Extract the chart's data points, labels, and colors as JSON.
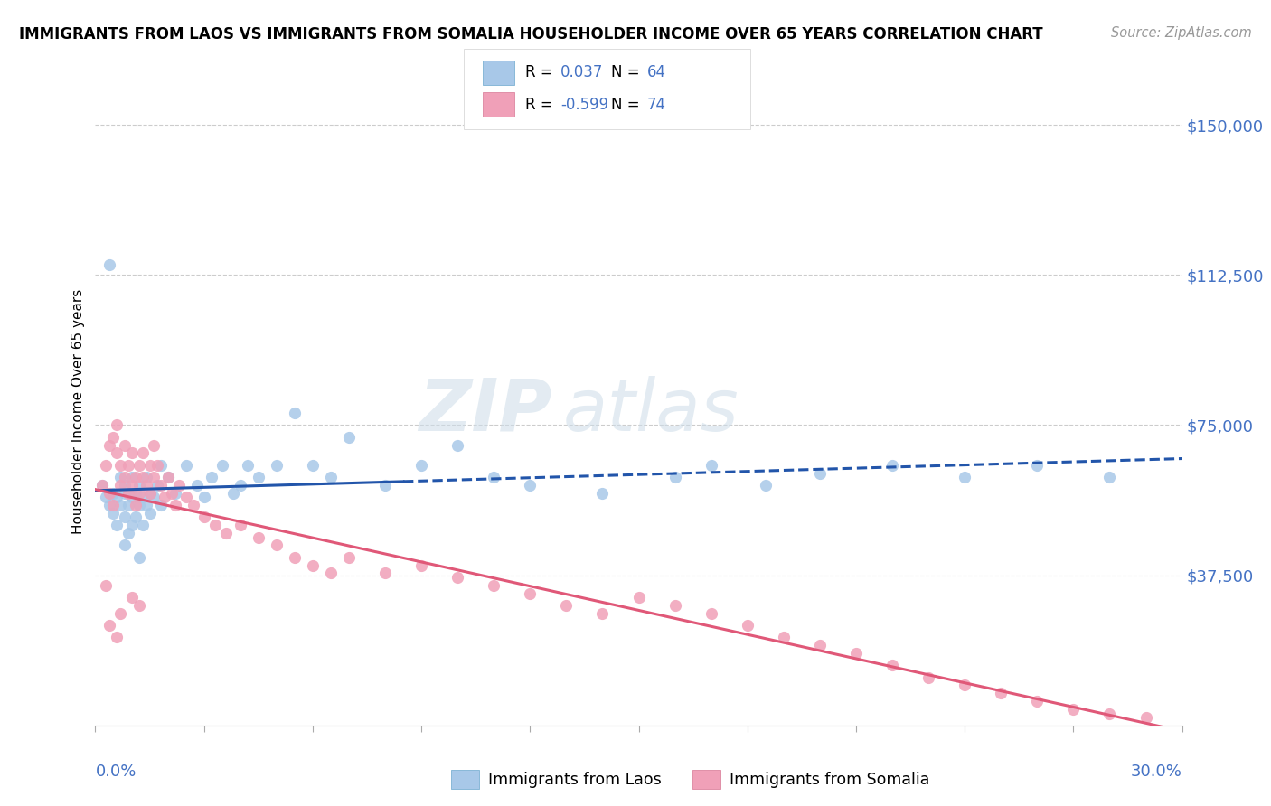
{
  "title": "IMMIGRANTS FROM LAOS VS IMMIGRANTS FROM SOMALIA HOUSEHOLDER INCOME OVER 65 YEARS CORRELATION CHART",
  "source": "Source: ZipAtlas.com",
  "ylabel": "Householder Income Over 65 years",
  "ytick_labels": [
    "$150,000",
    "$112,500",
    "$75,000",
    "$37,500"
  ],
  "ytick_values": [
    150000,
    112500,
    75000,
    37500
  ],
  "xlim": [
    0.0,
    0.3
  ],
  "ylim": [
    0,
    157000
  ],
  "laos_color": "#a8c8e8",
  "somalia_color": "#f0a0b8",
  "laos_line_color": "#2255aa",
  "somalia_line_color": "#e05878",
  "laos_R": 0.037,
  "laos_N": 64,
  "somalia_R": -0.599,
  "somalia_N": 74,
  "watermark_zip": "ZIP",
  "watermark_atlas": "atlas",
  "legend_label_laos": "Immigrants from Laos",
  "legend_label_somalia": "Immigrants from Somalia",
  "laos_x": [
    0.002,
    0.003,
    0.004,
    0.005,
    0.005,
    0.006,
    0.006,
    0.007,
    0.007,
    0.008,
    0.008,
    0.008,
    0.009,
    0.009,
    0.01,
    0.01,
    0.01,
    0.011,
    0.011,
    0.012,
    0.012,
    0.013,
    0.013,
    0.014,
    0.014,
    0.015,
    0.015,
    0.016,
    0.017,
    0.018,
    0.02,
    0.022,
    0.025,
    0.028,
    0.03,
    0.032,
    0.035,
    0.038,
    0.04,
    0.042,
    0.045,
    0.05,
    0.055,
    0.06,
    0.065,
    0.07,
    0.08,
    0.09,
    0.1,
    0.11,
    0.12,
    0.14,
    0.16,
    0.17,
    0.185,
    0.2,
    0.22,
    0.24,
    0.26,
    0.28,
    0.004,
    0.018,
    0.008,
    0.012
  ],
  "laos_y": [
    60000,
    57000,
    55000,
    58000,
    53000,
    57000,
    50000,
    62000,
    55000,
    60000,
    58000,
    52000,
    55000,
    48000,
    62000,
    57000,
    50000,
    58000,
    52000,
    60000,
    55000,
    57000,
    50000,
    62000,
    55000,
    58000,
    53000,
    57000,
    60000,
    55000,
    62000,
    58000,
    65000,
    60000,
    57000,
    62000,
    65000,
    58000,
    60000,
    65000,
    62000,
    65000,
    78000,
    65000,
    62000,
    72000,
    60000,
    65000,
    70000,
    62000,
    60000,
    58000,
    62000,
    65000,
    60000,
    63000,
    65000,
    62000,
    65000,
    62000,
    115000,
    65000,
    45000,
    42000
  ],
  "somalia_x": [
    0.002,
    0.003,
    0.004,
    0.004,
    0.005,
    0.005,
    0.006,
    0.006,
    0.007,
    0.007,
    0.008,
    0.008,
    0.009,
    0.009,
    0.01,
    0.01,
    0.011,
    0.011,
    0.012,
    0.012,
    0.013,
    0.013,
    0.014,
    0.015,
    0.015,
    0.016,
    0.016,
    0.017,
    0.018,
    0.019,
    0.02,
    0.021,
    0.022,
    0.023,
    0.025,
    0.027,
    0.03,
    0.033,
    0.036,
    0.04,
    0.045,
    0.05,
    0.055,
    0.06,
    0.065,
    0.07,
    0.08,
    0.09,
    0.1,
    0.11,
    0.12,
    0.13,
    0.14,
    0.15,
    0.16,
    0.17,
    0.18,
    0.19,
    0.2,
    0.21,
    0.22,
    0.23,
    0.24,
    0.25,
    0.26,
    0.27,
    0.28,
    0.29,
    0.004,
    0.006,
    0.003,
    0.007,
    0.01,
    0.012
  ],
  "somalia_y": [
    60000,
    65000,
    70000,
    58000,
    72000,
    55000,
    68000,
    75000,
    65000,
    60000,
    70000,
    62000,
    65000,
    58000,
    68000,
    60000,
    62000,
    55000,
    65000,
    58000,
    62000,
    68000,
    60000,
    65000,
    58000,
    70000,
    62000,
    65000,
    60000,
    57000,
    62000,
    58000,
    55000,
    60000,
    57000,
    55000,
    52000,
    50000,
    48000,
    50000,
    47000,
    45000,
    42000,
    40000,
    38000,
    42000,
    38000,
    40000,
    37000,
    35000,
    33000,
    30000,
    28000,
    32000,
    30000,
    28000,
    25000,
    22000,
    20000,
    18000,
    15000,
    12000,
    10000,
    8000,
    6000,
    4000,
    3000,
    2000,
    25000,
    22000,
    35000,
    28000,
    32000,
    30000
  ]
}
